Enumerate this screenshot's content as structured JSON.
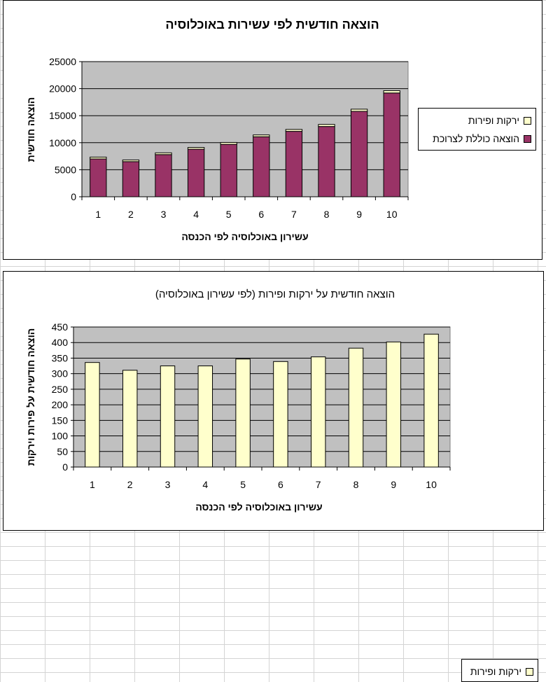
{
  "chart_data": [
    {
      "type": "bar",
      "stacked": true,
      "title": "הוצאה חודשית לפי עשירות באוכלוסיה",
      "xlabel": "עשירון באוכלוסיה לפי הכנסה",
      "ylabel": "הוצאה חודשית",
      "categories": [
        "1",
        "2",
        "3",
        "4",
        "5",
        "6",
        "7",
        "8",
        "9",
        "10"
      ],
      "yticks": [
        "0",
        "5000",
        "10000",
        "15000",
        "20000",
        "25000"
      ],
      "ylim": [
        0,
        25000
      ],
      "grid": true,
      "legend_position": "right",
      "series": [
        {
          "name": "הוצאה כוללת לצרוכת",
          "color": "#993366",
          "values": [
            7000,
            6500,
            7800,
            8800,
            9700,
            11100,
            12100,
            13000,
            15800,
            19200
          ]
        },
        {
          "name": "ירקות ופירות",
          "color": "#ffffcc",
          "values": [
            336,
            311,
            325,
            325,
            347,
            339,
            354,
            382,
            402,
            427
          ]
        }
      ]
    },
    {
      "type": "bar",
      "title": "הוצאה חודשית על ירקות ופירות (לפי עשירון באוכלוסיה)",
      "xlabel": "עשירון באוכלוסיה לפי הכנסה",
      "ylabel": "הוצאה חודשית על פירות וירקות",
      "categories": [
        "1",
        "2",
        "3",
        "4",
        "5",
        "6",
        "7",
        "8",
        "9",
        "10"
      ],
      "yticks": [
        "0",
        "50",
        "100",
        "150",
        "200",
        "250",
        "300",
        "350",
        "400",
        "450"
      ],
      "ylim": [
        0,
        450
      ],
      "grid": true,
      "legend_position": "right",
      "series": [
        {
          "name": "ירקות ופירות",
          "color": "#ffffcc",
          "values": [
            336,
            311,
            325,
            325,
            347,
            339,
            354,
            382,
            402,
            427
          ]
        }
      ]
    }
  ]
}
